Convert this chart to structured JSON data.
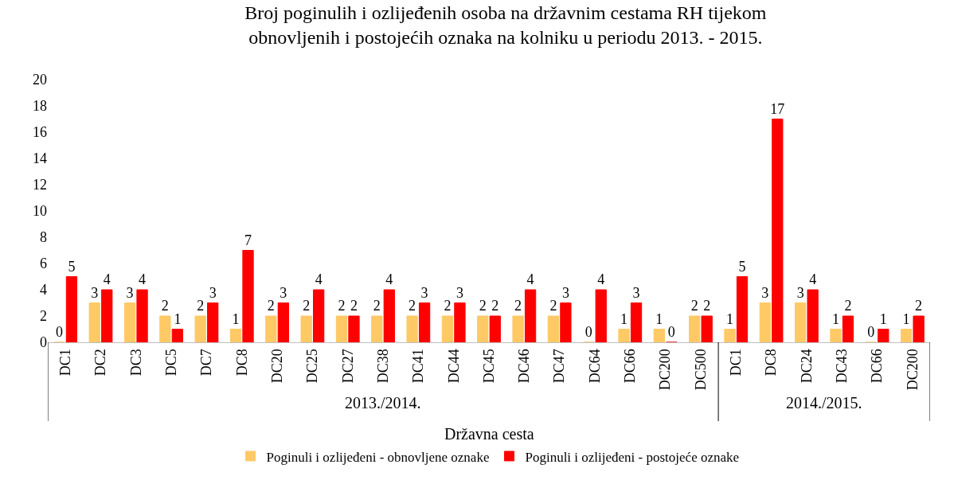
{
  "chart_data": {
    "type": "bar",
    "title": "Broj poginulih i ozlijeđenih osoba na državnim cestama RH tijekom obnovljenih i postojećih oznaka na kolniku u periodu 2013. - 2015.",
    "xlabel": "Državna cesta",
    "categories": [
      "DC1",
      "DC2",
      "DC3",
      "DC5",
      "DC7",
      "DC8",
      "DC20",
      "DC25",
      "DC27",
      "DC38",
      "DC41",
      "DC44",
      "DC45",
      "DC46",
      "DC47",
      "DC64",
      "DC66",
      "DC200",
      "DC500",
      "DC1",
      "DC8",
      "DC24",
      "DC43",
      "DC66",
      "DC200"
    ],
    "series": [
      {
        "name": "Poginuli i ozlijeđeni - obnovljene oznake",
        "color": "#ffc966",
        "values": [
          0,
          3,
          3,
          2,
          2,
          1,
          2,
          2,
          2,
          2,
          2,
          2,
          2,
          2,
          2,
          0,
          1,
          1,
          2,
          1,
          3,
          3,
          1,
          0,
          1
        ]
      },
      {
        "name": "Poginuli i ozlijeđeni - postojeće oznake",
        "color": "#ff0000",
        "values": [
          5,
          4,
          4,
          1,
          3,
          7,
          3,
          4,
          2,
          4,
          3,
          3,
          2,
          4,
          3,
          4,
          3,
          0,
          2,
          5,
          17,
          4,
          2,
          1,
          2
        ]
      }
    ],
    "annotations": [
      "2013./2014.",
      "2014./2015."
    ],
    "ylim": [
      0,
      20
    ],
    "yticks": [
      0,
      2,
      4,
      6,
      8,
      10,
      12,
      14,
      16,
      18,
      20
    ],
    "grid": false,
    "legend": "bottom",
    "data_labels": true
  }
}
